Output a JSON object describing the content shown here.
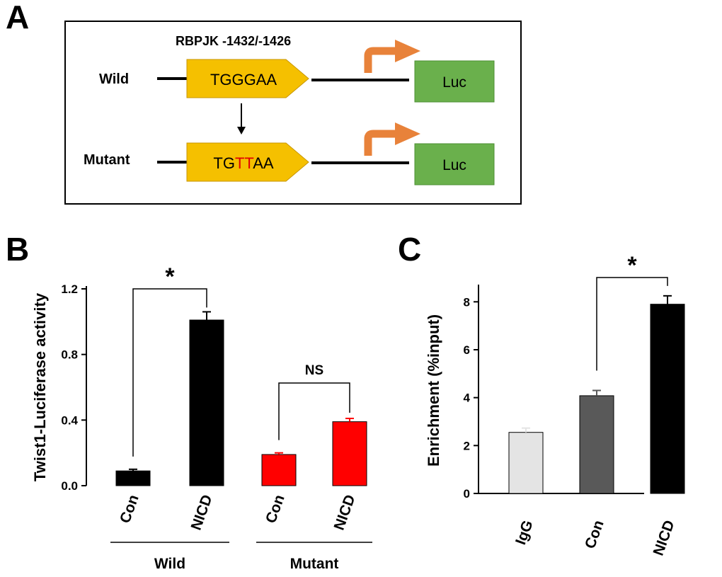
{
  "panel_a": {
    "letter": "A",
    "site_label": "RBPJK  -1432/-1426",
    "wild_label": "Wild",
    "mutant_label": "Mutant",
    "wild_seq": "TGGGAA",
    "mutant_seq_prefix": "TG",
    "mutant_seq_mut": "TT",
    "mutant_seq_suffix": "AA",
    "luc_label": "Luc",
    "colors": {
      "site_fill": "#f5c000",
      "luc_fill": "#6ab04c",
      "arrow": "#e8823a",
      "mutation": "#e00000"
    }
  },
  "chart_data": [
    {
      "panel": "B",
      "type": "bar",
      "ylabel": "Twist1-Luciferase activity",
      "ylim": [
        0,
        1.2
      ],
      "yticks": [
        "0.0",
        "0.4",
        "0.8",
        "1.2"
      ],
      "categories": [
        "Con",
        "NICD",
        "Con",
        "NICD"
      ],
      "groups": [
        {
          "label": "Wild",
          "members": [
            0,
            1
          ]
        },
        {
          "label": "Mutant",
          "members": [
            2,
            3
          ]
        }
      ],
      "values": [
        0.09,
        1.01,
        0.19,
        0.39
      ],
      "errors": [
        0.01,
        0.05,
        0.01,
        0.02
      ],
      "colors": [
        "#000000",
        "#000000",
        "#ff0000",
        "#ff0000"
      ],
      "annotations": [
        {
          "from": 0,
          "to": 1,
          "text": "*"
        },
        {
          "from": 2,
          "to": 3,
          "text": "NS"
        }
      ]
    },
    {
      "panel": "C",
      "type": "bar",
      "ylabel": "Enrichment (%input)",
      "ylim": [
        0,
        8.6
      ],
      "yticks": [
        "0",
        "2",
        "4",
        "6",
        "8"
      ],
      "categories": [
        "IgG",
        "Con",
        "NICD"
      ],
      "values": [
        2.55,
        4.08,
        7.9
      ],
      "errors": [
        0.18,
        0.22,
        0.35
      ],
      "colors": [
        "#e4e4e4",
        "#595959",
        "#000000"
      ],
      "annotations": [
        {
          "from": 1,
          "to": 2,
          "text": "*"
        }
      ]
    }
  ]
}
